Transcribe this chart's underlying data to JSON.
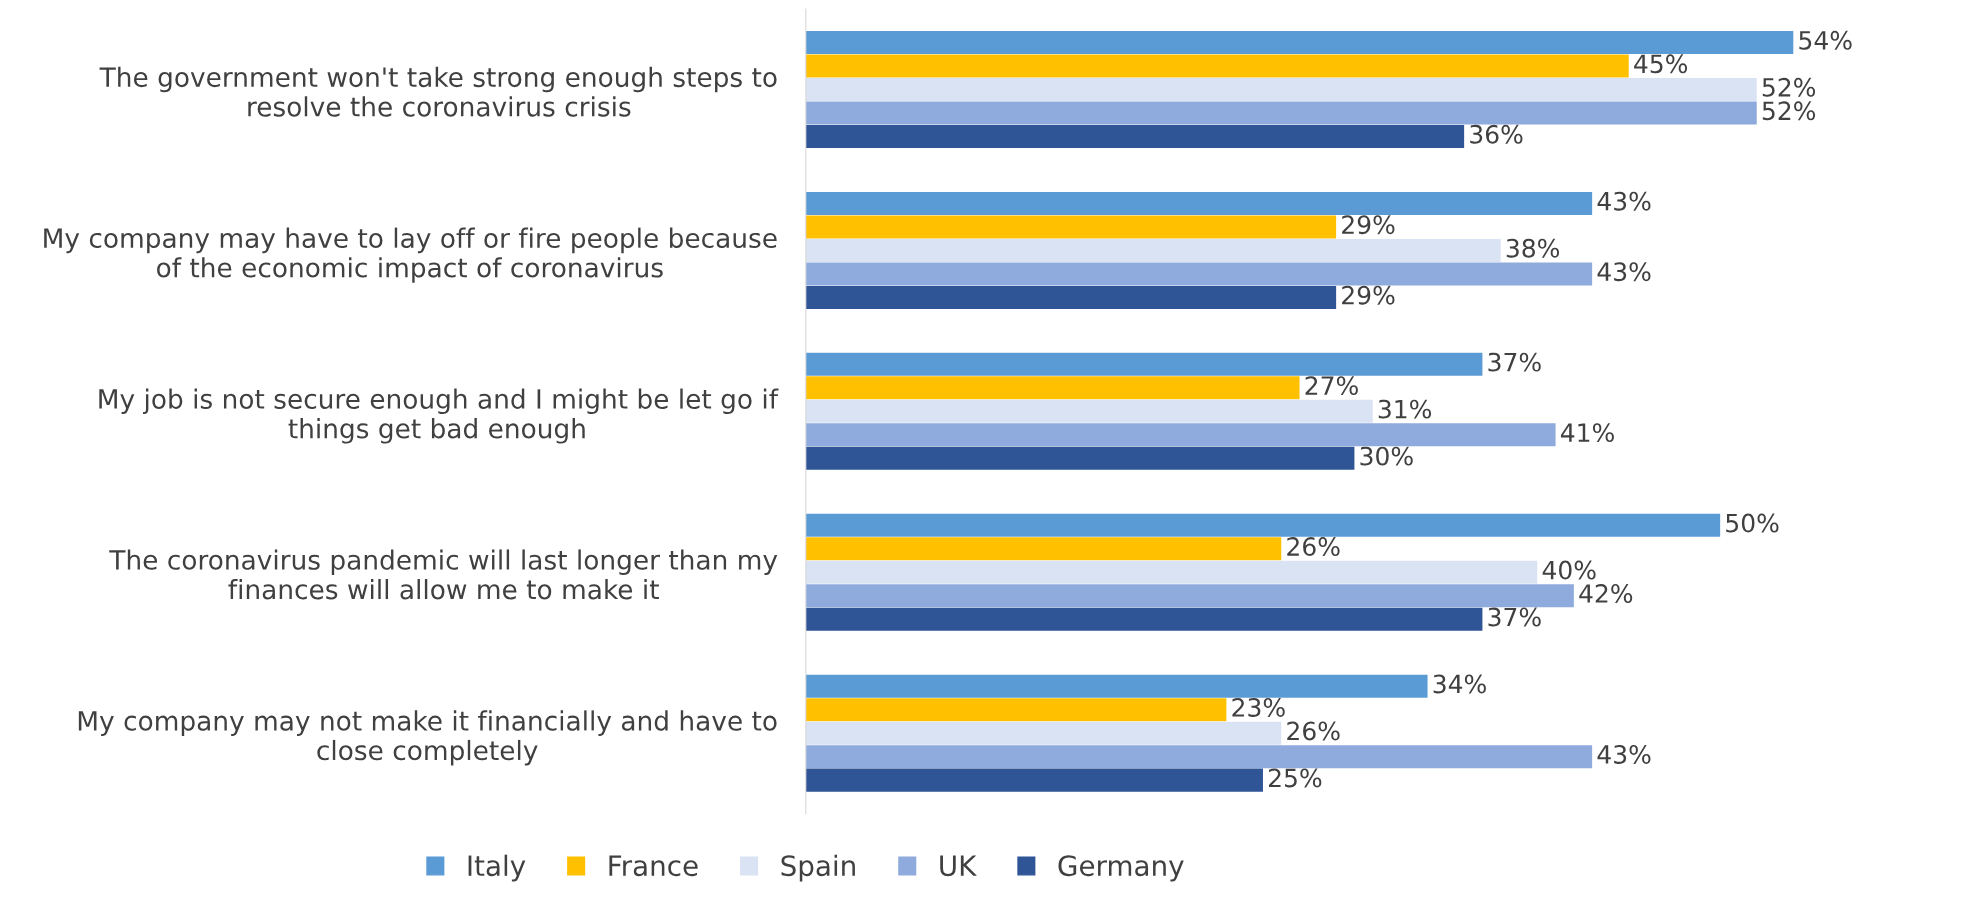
{
  "chart_data": {
    "type": "bar",
    "orientation": "horizontal",
    "categories": [
      "The government won't take strong enough steps to\nresolve the coronavirus crisis",
      "My company may have to lay off or fire people because\nof the economic impact of coronavirus",
      "My job is not secure enough and I might be let go if\nthings get bad enough",
      "The coronavirus pandemic will last longer than my\nfinances will allow me to make it",
      "My company may not make it financially and have to\nclose completely"
    ],
    "series": [
      {
        "name": "Italy",
        "color": "#5b9bd5",
        "values": [
          54,
          43,
          37,
          50,
          34
        ],
        "value_labels": [
          "54%",
          "43%",
          "37%",
          "50%",
          "34%"
        ]
      },
      {
        "name": "France",
        "color": "#ffc000",
        "values": [
          45,
          29,
          27,
          26,
          23
        ],
        "value_labels": [
          "45%",
          "29%",
          "27%",
          "26%",
          "23%"
        ]
      },
      {
        "name": "Spain",
        "color": "#dae3f3",
        "values": [
          52,
          38,
          31,
          40,
          26
        ],
        "value_labels": [
          "52%",
          "38%",
          "31%",
          "40%",
          "26%"
        ]
      },
      {
        "name": "UK",
        "color": "#8faadc",
        "values": [
          52,
          43,
          41,
          42,
          43
        ],
        "value_labels": [
          "52%",
          "43%",
          "41%",
          "42%",
          "43%"
        ]
      },
      {
        "name": "Germany",
        "color": "#2f5597",
        "values": [
          36,
          29,
          30,
          37,
          25
        ],
        "value_labels": [
          "36%",
          "29%",
          "30%",
          "37%",
          "25%"
        ]
      }
    ],
    "legend": "bottom"
  }
}
